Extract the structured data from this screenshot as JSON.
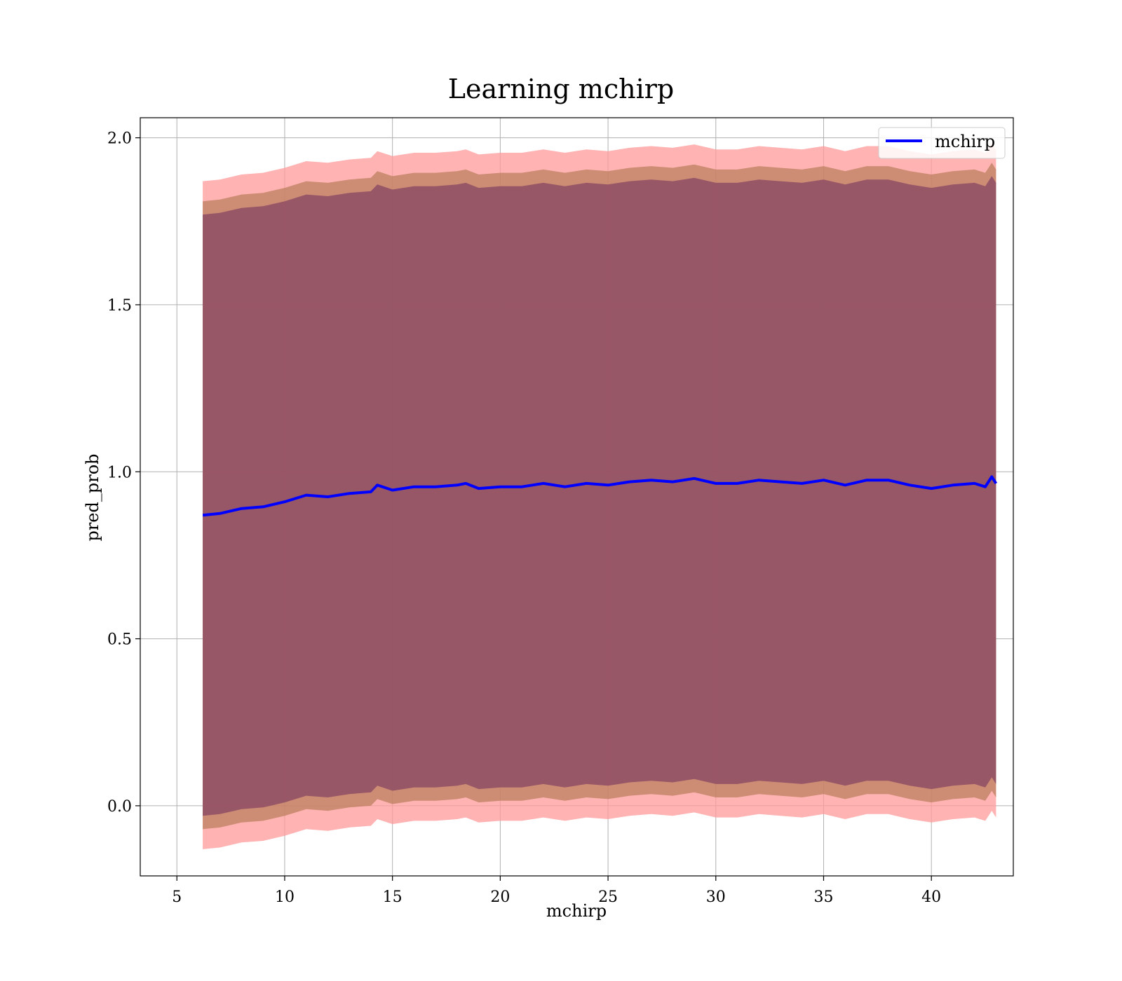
{
  "chart_data": {
    "type": "area",
    "title": "Learning mchirp",
    "xlabel": "mchirp",
    "ylabel": "pred_prob",
    "xlim": [
      3.3,
      43.8
    ],
    "ylim": [
      -0.21,
      2.06
    ],
    "xticks": [
      5,
      10,
      15,
      20,
      25,
      30,
      35,
      40
    ],
    "yticks": [
      0.0,
      0.5,
      1.0,
      1.5,
      2.0
    ],
    "xtick_labels": [
      "5",
      "10",
      "15",
      "20",
      "25",
      "30",
      "35",
      "40"
    ],
    "ytick_labels": [
      "0.0",
      "0.5",
      "1.0",
      "1.5",
      "2.0"
    ],
    "grid": true,
    "legend": {
      "placement": "top-right",
      "entries": [
        "mchirp"
      ]
    },
    "x": [
      6.2,
      7.0,
      8.0,
      9.0,
      10.0,
      11.0,
      12.0,
      13.0,
      14.0,
      14.3,
      15.0,
      16.0,
      17.0,
      18.0,
      18.4,
      19.0,
      20.0,
      21.0,
      22.0,
      23.0,
      24.0,
      25.0,
      26.0,
      27.0,
      28.0,
      29.0,
      30.0,
      31.0,
      32.0,
      33.0,
      34.0,
      35.0,
      36.0,
      37.0,
      38.0,
      39.0,
      40.0,
      41.0,
      42.0,
      42.5,
      42.8,
      43.0
    ],
    "series": [
      {
        "name": "mchirp",
        "color": "#0000ff",
        "values": [
          0.87,
          0.875,
          0.89,
          0.895,
          0.91,
          0.93,
          0.925,
          0.935,
          0.94,
          0.96,
          0.945,
          0.955,
          0.955,
          0.96,
          0.965,
          0.95,
          0.955,
          0.955,
          0.965,
          0.955,
          0.965,
          0.96,
          0.97,
          0.975,
          0.97,
          0.98,
          0.965,
          0.965,
          0.975,
          0.97,
          0.965,
          0.975,
          0.96,
          0.975,
          0.975,
          0.96,
          0.95,
          0.96,
          0.965,
          0.955,
          0.985,
          0.965
        ]
      }
    ],
    "bands": [
      {
        "color": "#ff9999",
        "opacity": 0.75,
        "sigma": 1.0,
        "inner": {
          "color": "#b87c5a",
          "opacity": 0.7,
          "sigma": 0.94
        }
      },
      {
        "color": "#8b4a63",
        "opacity": 0.8,
        "sigma": 0.9
      }
    ]
  }
}
